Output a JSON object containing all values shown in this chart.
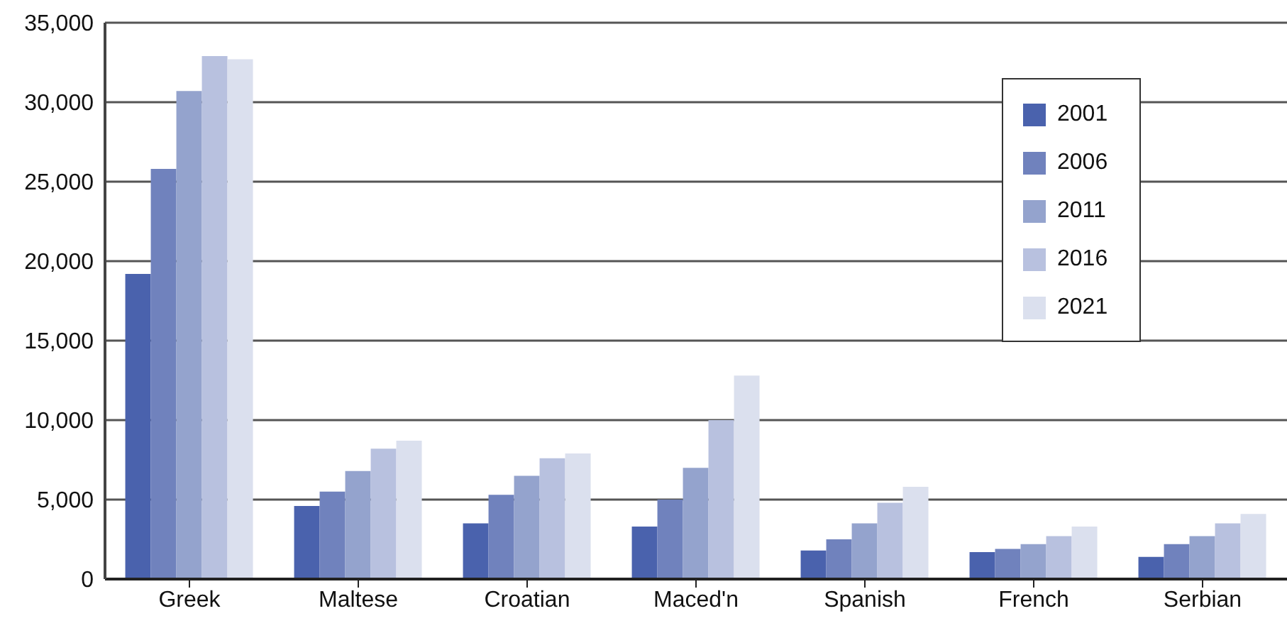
{
  "chart_data": {
    "type": "bar",
    "categories": [
      "Greek",
      "Maltese",
      "Croatian",
      "Maced'n",
      "Spanish",
      "French",
      "Serbian"
    ],
    "series": [
      {
        "name": "2001",
        "color": "#4a62ad",
        "values": [
          19200,
          4600,
          3500,
          3300,
          1800,
          1700,
          1400
        ]
      },
      {
        "name": "2006",
        "color": "#7082bd",
        "values": [
          25800,
          5500,
          5300,
          5000,
          2500,
          1900,
          2200
        ]
      },
      {
        "name": "2011",
        "color": "#94a3cd",
        "values": [
          30700,
          6800,
          6500,
          7000,
          3500,
          2200,
          2700
        ]
      },
      {
        "name": "2016",
        "color": "#b8c1df",
        "values": [
          32900,
          8200,
          7600,
          10000,
          4800,
          2700,
          3500
        ]
      },
      {
        "name": "2021",
        "color": "#dbe0ee",
        "values": [
          32700,
          8700,
          7900,
          12800,
          5800,
          3300,
          4100
        ]
      }
    ],
    "ylim": [
      0,
      35000
    ],
    "yticks": [
      0,
      {
        "value": 5000,
        "label": "5,000"
      },
      {
        "value": 10000,
        "label": "10,000"
      },
      {
        "value": 15000,
        "label": "15,000"
      },
      {
        "value": 20000,
        "label": "20,000"
      },
      {
        "value": 25000,
        "label": "25,000"
      },
      {
        "value": 30000,
        "label": "30,000"
      },
      {
        "value": 35000,
        "label": "35,000"
      }
    ],
    "grid": "y",
    "legend": "top right"
  }
}
